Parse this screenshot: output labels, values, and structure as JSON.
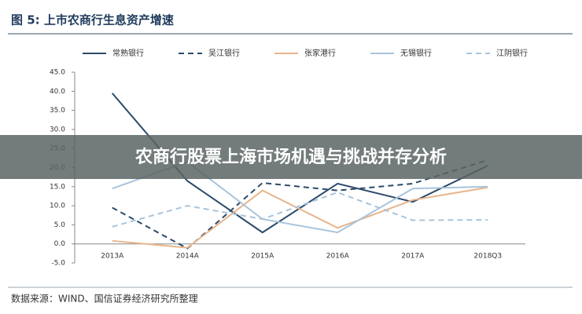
{
  "chart_data": {
    "type": "line",
    "title": "图 5: 上市农商行生息资产增速",
    "banner": "农商行股票上海市场机遇与挑战并存分析",
    "source": "数据来源：WIND、国信证券经济研究所整理",
    "categories": [
      "2013A",
      "2014A",
      "2015A",
      "2016A",
      "2017A",
      "2018Q3"
    ],
    "ylim": [
      -5,
      45
    ],
    "yticks": [
      {
        "value": -5,
        "label": "-5.0"
      },
      {
        "value": 0,
        "label": "0.0"
      },
      {
        "value": 5,
        "label": "5.0"
      },
      {
        "value": 10,
        "label": "10.0"
      },
      {
        "value": 15,
        "label": "15.0"
      },
      {
        "value": 20,
        "label": "20.0"
      },
      {
        "value": 25,
        "label": "25.0"
      },
      {
        "value": 30,
        "label": "30.0"
      },
      {
        "value": 35,
        "label": "35.0"
      },
      {
        "value": 40,
        "label": "40.0"
      },
      {
        "value": 45,
        "label": "45.0"
      }
    ],
    "series": [
      {
        "name": "常熟银行",
        "color": "#2b4a6b",
        "dashed": false,
        "values": [
          39.5,
          16.5,
          3,
          15.8,
          11,
          20.5
        ]
      },
      {
        "name": "吴江银行",
        "color": "#2b4a6b",
        "dashed": true,
        "values": [
          9.5,
          -1.2,
          16,
          14,
          15.8,
          22
        ]
      },
      {
        "name": "张家港行",
        "color": "#e8b48a",
        "dashed": false,
        "values": [
          0.8,
          -1,
          14,
          4.2,
          11.5,
          14.8
        ]
      },
      {
        "name": "无锡银行",
        "color": "#a8c4dc",
        "dashed": false,
        "values": [
          14.5,
          21.5,
          6.5,
          3,
          14.5,
          15
        ]
      },
      {
        "name": "江阴银行",
        "color": "#a8c4dc",
        "dashed": true,
        "values": [
          4.5,
          10,
          6.5,
          13.5,
          6.2,
          6.3
        ]
      }
    ]
  }
}
